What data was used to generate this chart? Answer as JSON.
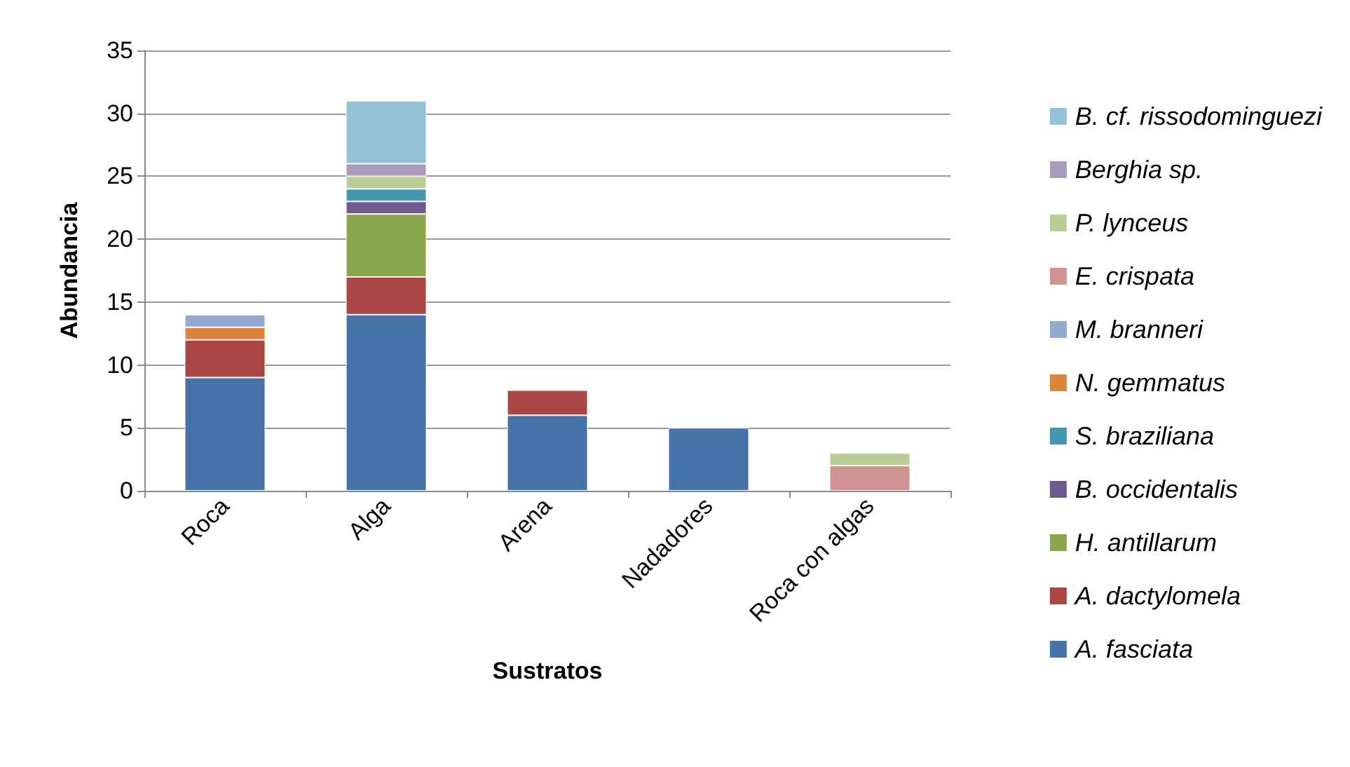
{
  "chart_data": {
    "type": "bar",
    "stacked": true,
    "xlabel": "Sustratos",
    "ylabel": "Abundancia",
    "categories": [
      "Roca",
      "Alga",
      "Arena",
      "Nadadores",
      "Roca con algas"
    ],
    "ylim": [
      0,
      35
    ],
    "yticks": [
      0,
      5,
      10,
      15,
      20,
      25,
      30,
      35
    ],
    "grid": "y",
    "legend": "right",
    "series": [
      {
        "name": "A. fasciata",
        "color": "#4572a7",
        "values": [
          9,
          14,
          6,
          5,
          null
        ]
      },
      {
        "name": "A. dactylomela",
        "color": "#aa4643",
        "values": [
          3,
          3,
          2,
          null,
          null
        ]
      },
      {
        "name": "H. antillarum",
        "color": "#89a54e",
        "values": [
          null,
          5,
          null,
          null,
          null
        ]
      },
      {
        "name": "B. occidentalis",
        "color": "#71588f",
        "values": [
          null,
          1,
          null,
          null,
          null
        ]
      },
      {
        "name": "S. braziliana",
        "color": "#4198af",
        "values": [
          null,
          1,
          null,
          null,
          null
        ]
      },
      {
        "name": "N. gemmatus",
        "color": "#db843d",
        "values": [
          1,
          null,
          null,
          null,
          null
        ]
      },
      {
        "name": "M. branneri",
        "color": "#93a9cf",
        "values": [
          1,
          null,
          null,
          null,
          null
        ]
      },
      {
        "name": "E. crispata",
        "color": "#d19392",
        "values": [
          null,
          null,
          null,
          null,
          2
        ]
      },
      {
        "name": "P. lynceus",
        "color": "#b9cd96",
        "values": [
          null,
          1,
          null,
          null,
          1
        ]
      },
      {
        "name": "Berghia sp.",
        "color": "#a99bbd",
        "values": [
          null,
          1,
          null,
          null,
          null
        ]
      },
      {
        "name": "B. cf. rissodominguezi",
        "color": "#92c3d4",
        "values": [
          null,
          5,
          null,
          null,
          null
        ]
      }
    ]
  }
}
